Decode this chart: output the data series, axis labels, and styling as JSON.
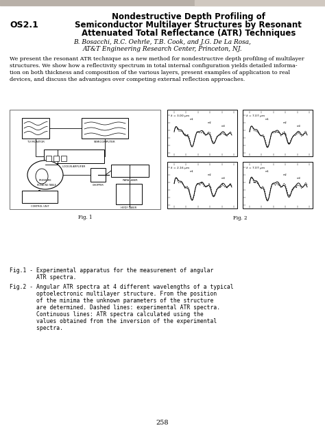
{
  "bg_color": "#f0ede8",
  "page_bg": "#ffffff",
  "section_label": "OS2.1",
  "title_line1": "Nondestructive Depth Profiling of",
  "title_line2": "Semiconductor Multilayer Structures by Resonant",
  "title_line3": "Attenuated Total Reflectance (ATR) Techniques",
  "authors": "B. Bosacchi, R.C. Oehrle, T.B. Cook, and J.G. De La Rosa,",
  "affiliation": "AT&T Engineering Research Center, Princeton, NJ.",
  "abstract_lines": [
    "We present the resonant ATR technique as a new method for nondestructive depth profiling of multilayer",
    "structures. We show how a reflectivity spectrum in total internal configuration yields detailed informa-",
    "tion on both thickness and composition of the various layers, present examples of application to real",
    "devices, and discuss the advantages over competing external reflection approaches."
  ],
  "fig1_cap_line1": "Fig.1 - Experimental apparatus for the measurement of angular",
  "fig1_cap_line2": "        ATR spectra.",
  "fig2_cap_lines": [
    "Fig.2 - Angular ATR spectra at 4 different wavelengths of a typical",
    "        optoelectronic multilayer structure. From the position",
    "        of the minima the unknown parameters of the structure",
    "        are determined. Dashed lines: experimental ATR spectra.",
    "        Continuous lines: ATR spectra calculated using the",
    "        values obtained from the inversion of the experimental",
    "        spectra."
  ],
  "page_number": "258",
  "header_bar_color": "#b8b0a8",
  "header_bar_right_color": "#d0c8c0",
  "wavelengths": [
    "l = 3.00 pm",
    "l = 7.07 pm",
    "l = 2.16 pm",
    "l = 7.07 pm"
  ]
}
